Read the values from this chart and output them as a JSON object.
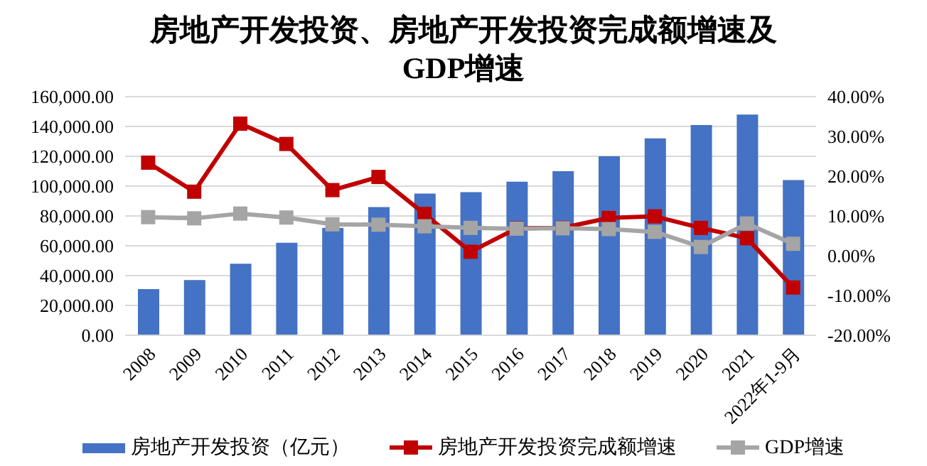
{
  "chart_data": {
    "type": "bar",
    "title": "房地产开发投资、房地产开发投资完成额增速及GDP增速",
    "categories": [
      "2008",
      "2009",
      "2010",
      "2011",
      "2012",
      "2013",
      "2014",
      "2015",
      "2016",
      "2017",
      "2018",
      "2019",
      "2020",
      "2021",
      "2022年1-9月"
    ],
    "series": [
      {
        "name": "房地产开发投资（亿元）",
        "color": "#4472c4",
        "values": [
          31000,
          37000,
          48000,
          62000,
          72000,
          86000,
          95000,
          96000,
          103000,
          110000,
          120000,
          132000,
          141000,
          148000,
          104000
        ]
      },
      {
        "name": "房地产开发投资完成额增速",
        "type": "line",
        "axis": "y2",
        "color": "#c00000",
        "values": [
          23.4,
          16.1,
          33.2,
          28.1,
          16.5,
          19.8,
          10.5,
          1.0,
          6.9,
          7.0,
          9.5,
          9.9,
          7.0,
          4.4,
          -8.0
        ]
      },
      {
        "name": "GDP增速",
        "type": "line",
        "axis": "y2",
        "color": "#a5a5a5",
        "values": [
          9.7,
          9.4,
          10.6,
          9.6,
          7.9,
          7.8,
          7.4,
          7.0,
          6.8,
          6.9,
          6.7,
          6.0,
          2.2,
          8.1,
          3.0
        ]
      }
    ],
    "ylim": [
      0,
      160000
    ],
    "yticks": [
      {
        "value": 0,
        "label": "0.00"
      },
      {
        "value": 20000,
        "label": "20,000.00"
      },
      {
        "value": 40000,
        "label": "40,000.00"
      },
      {
        "value": 60000,
        "label": "60,000.00"
      },
      {
        "value": 80000,
        "label": "80,000.00"
      },
      {
        "value": 100000,
        "label": "100,000.00"
      },
      {
        "value": 120000,
        "label": "120,000.00"
      },
      {
        "value": 140000,
        "label": "140,000.00"
      },
      {
        "value": 160000,
        "label": "160,000.00"
      }
    ],
    "y2lim": [
      -20,
      40
    ],
    "y2ticks": [
      {
        "value": -20,
        "label": "-20.00%"
      },
      {
        "value": -10,
        "label": "-10.00%"
      },
      {
        "value": 0,
        "label": "0.00%"
      },
      {
        "value": 10,
        "label": "10.00%"
      },
      {
        "value": 20,
        "label": "20.00%"
      },
      {
        "value": 30,
        "label": "30.00%"
      },
      {
        "value": 40,
        "label": "40.00%"
      }
    ],
    "grid": "y",
    "legend": "bottom",
    "marker": "square"
  }
}
